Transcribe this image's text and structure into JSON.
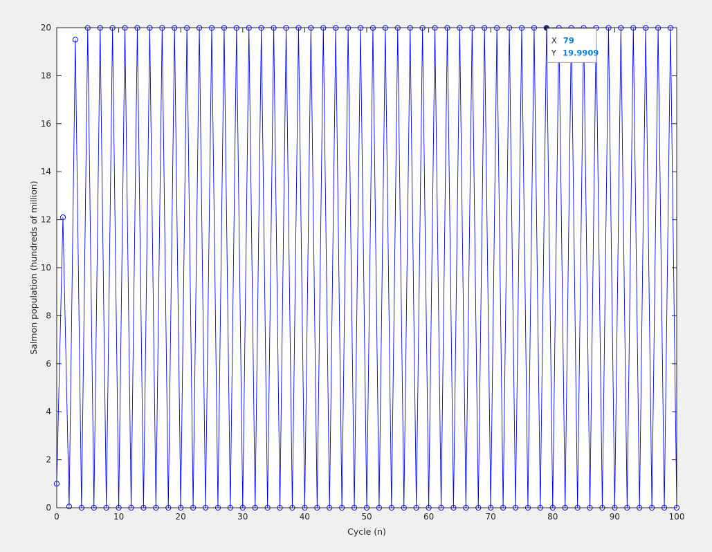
{
  "chart_data": {
    "type": "line",
    "title": "",
    "xlabel": "Cycle (n)",
    "ylabel": "Salmon population (hundreds of million)",
    "xlim": [
      0,
      100
    ],
    "ylim": [
      0,
      20
    ],
    "xticks": [
      0,
      10,
      20,
      30,
      40,
      50,
      60,
      70,
      80,
      90,
      100
    ],
    "yticks": [
      0,
      2,
      4,
      6,
      8,
      10,
      12,
      14,
      16,
      18,
      20
    ],
    "grid": false,
    "series": [
      {
        "color": "#0000ff",
        "marker": "circle",
        "x": [
          0,
          1,
          2,
          3,
          4,
          5,
          6,
          7,
          8,
          9,
          10,
          11,
          12,
          13,
          14,
          15,
          16,
          17,
          18,
          19,
          20,
          21,
          22,
          23,
          24,
          25,
          26,
          27,
          28,
          29,
          30,
          31,
          32,
          33,
          34,
          35,
          36,
          37,
          38,
          39,
          40,
          41,
          42,
          43,
          44,
          45,
          46,
          47,
          48,
          49,
          50,
          51,
          52,
          53,
          54,
          55,
          56,
          57,
          58,
          59,
          60,
          61,
          62,
          63,
          64,
          65,
          66,
          67,
          68,
          69,
          70,
          71,
          72,
          73,
          74,
          75,
          76,
          77,
          78,
          79,
          80,
          81,
          82,
          83,
          84,
          85,
          86,
          87,
          88,
          89,
          90,
          91,
          92,
          93,
          94,
          95,
          96,
          97,
          98,
          99,
          100
        ],
        "y": [
          1.0,
          12.1,
          0.05,
          19.5,
          0.0,
          19.99,
          0.0,
          19.99,
          0.0,
          19.99,
          0.0,
          19.99,
          0.0,
          19.99,
          0.0,
          19.99,
          0.0,
          19.99,
          0.0,
          19.99,
          0.0,
          19.99,
          0.0,
          19.99,
          0.0,
          19.99,
          0.0,
          19.99,
          0.0,
          19.99,
          0.0,
          19.99,
          0.0,
          19.99,
          0.0,
          19.99,
          0.0,
          19.99,
          0.0,
          19.99,
          0.0,
          19.99,
          0.0,
          19.99,
          0.0,
          19.99,
          0.0,
          19.99,
          0.0,
          19.99,
          0.0,
          19.99,
          0.0,
          19.99,
          0.0,
          19.99,
          0.0,
          19.99,
          0.0,
          19.99,
          0.0,
          19.99,
          0.0,
          19.99,
          0.0,
          19.99,
          0.0,
          19.99,
          0.0,
          19.99,
          0.0,
          19.99,
          0.0,
          19.99,
          0.0,
          19.99,
          0.0,
          19.99,
          0.0,
          19.9909,
          0.0,
          19.99,
          0.0,
          19.99,
          0.0,
          19.99,
          0.0,
          19.99,
          0.0,
          19.99,
          0.0,
          19.99,
          0.0,
          19.99,
          0.0,
          19.99,
          0.0,
          19.99,
          0.0,
          19.99,
          0.0
        ]
      }
    ],
    "datatip": {
      "x_key": "X",
      "x_value": "79",
      "y_key": "Y",
      "y_value": "19.9909",
      "point_x": 79,
      "point_y": 19.9909
    }
  }
}
